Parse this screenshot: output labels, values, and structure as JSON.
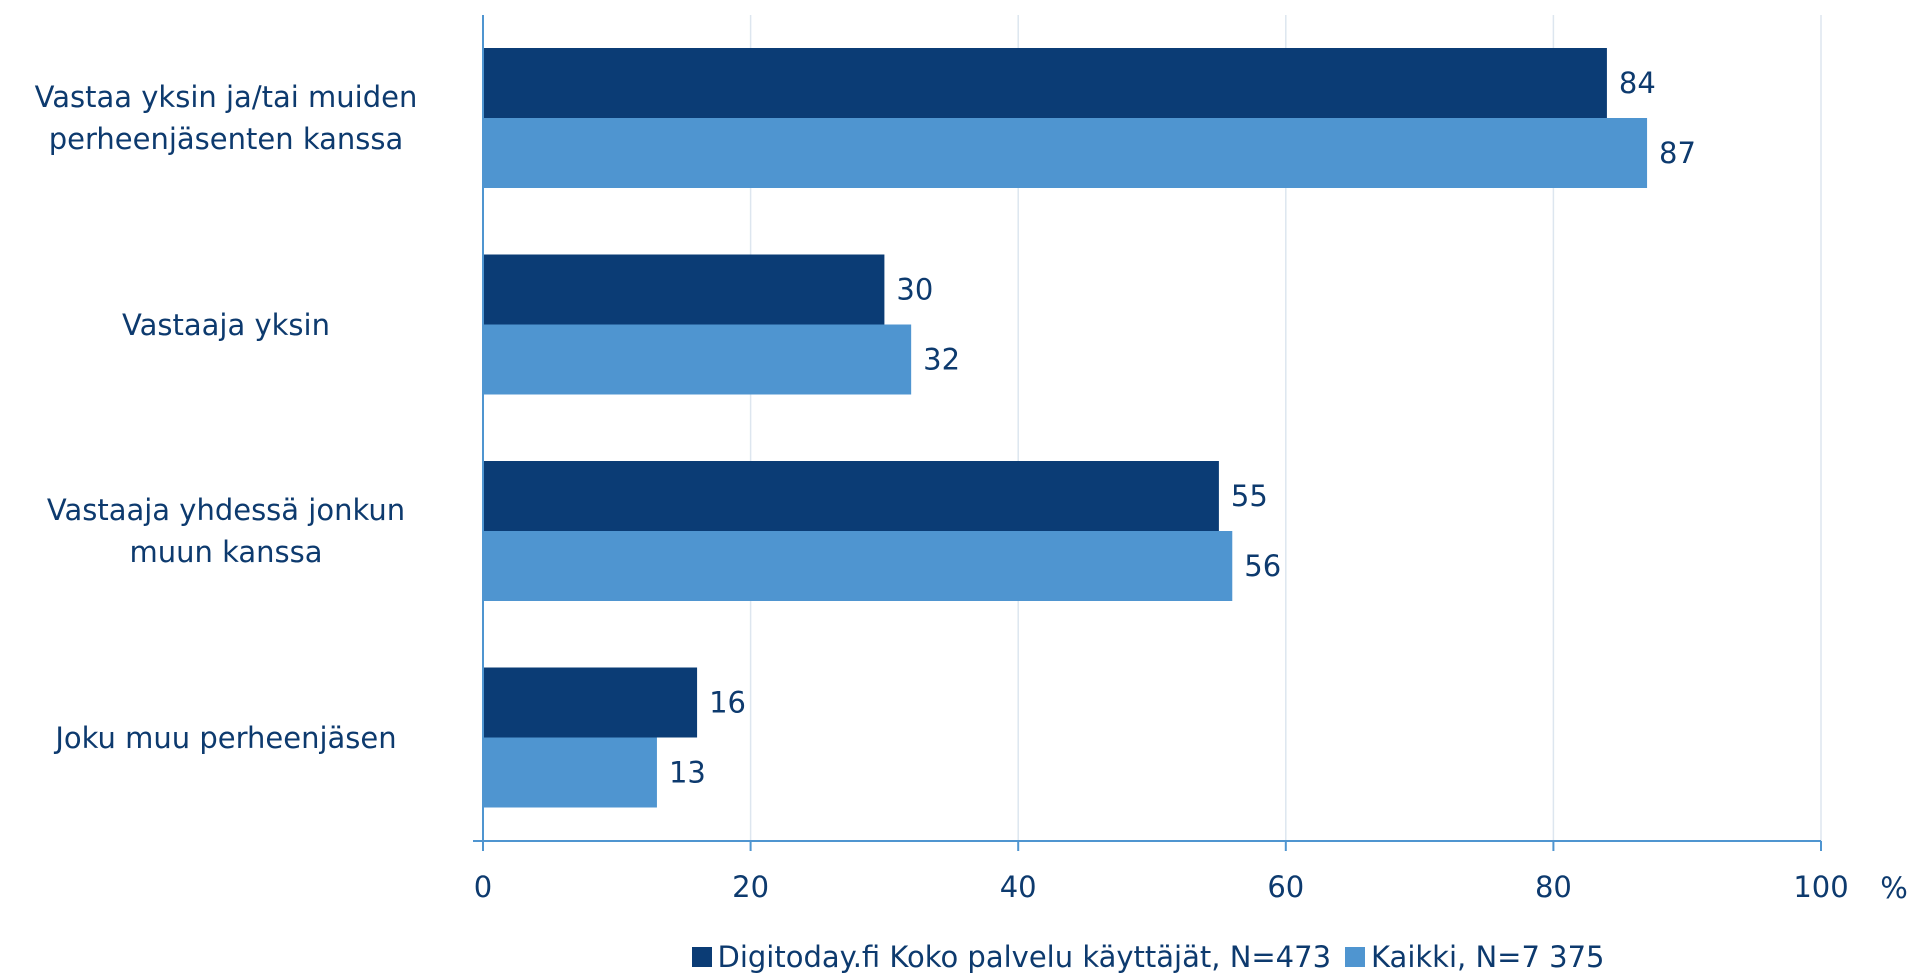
{
  "chart_data": {
    "type": "bar",
    "orientation": "horizontal",
    "categories": [
      "Vastaa yksin ja/tai muiden\nperheenjäsenten kanssa",
      "Vastaaja yksin",
      "Vastaaja yhdessä jonkun\nmuun kanssa",
      "Joku muu perheenjäsen"
    ],
    "series": [
      {
        "name": "Digitoday.fi Koko palvelu käyttäjät, N=473",
        "color": "#0b3c75",
        "values": [
          84,
          30,
          55,
          16
        ]
      },
      {
        "name": "Kaikki, N=7 375",
        "color": "#4f95d0",
        "values": [
          87,
          32,
          56,
          13
        ]
      }
    ],
    "xlim": [
      0,
      100
    ],
    "xticks": [
      0,
      20,
      40,
      60,
      80,
      100
    ],
    "xlabel": "%",
    "grid": true,
    "legend": "bottom"
  }
}
